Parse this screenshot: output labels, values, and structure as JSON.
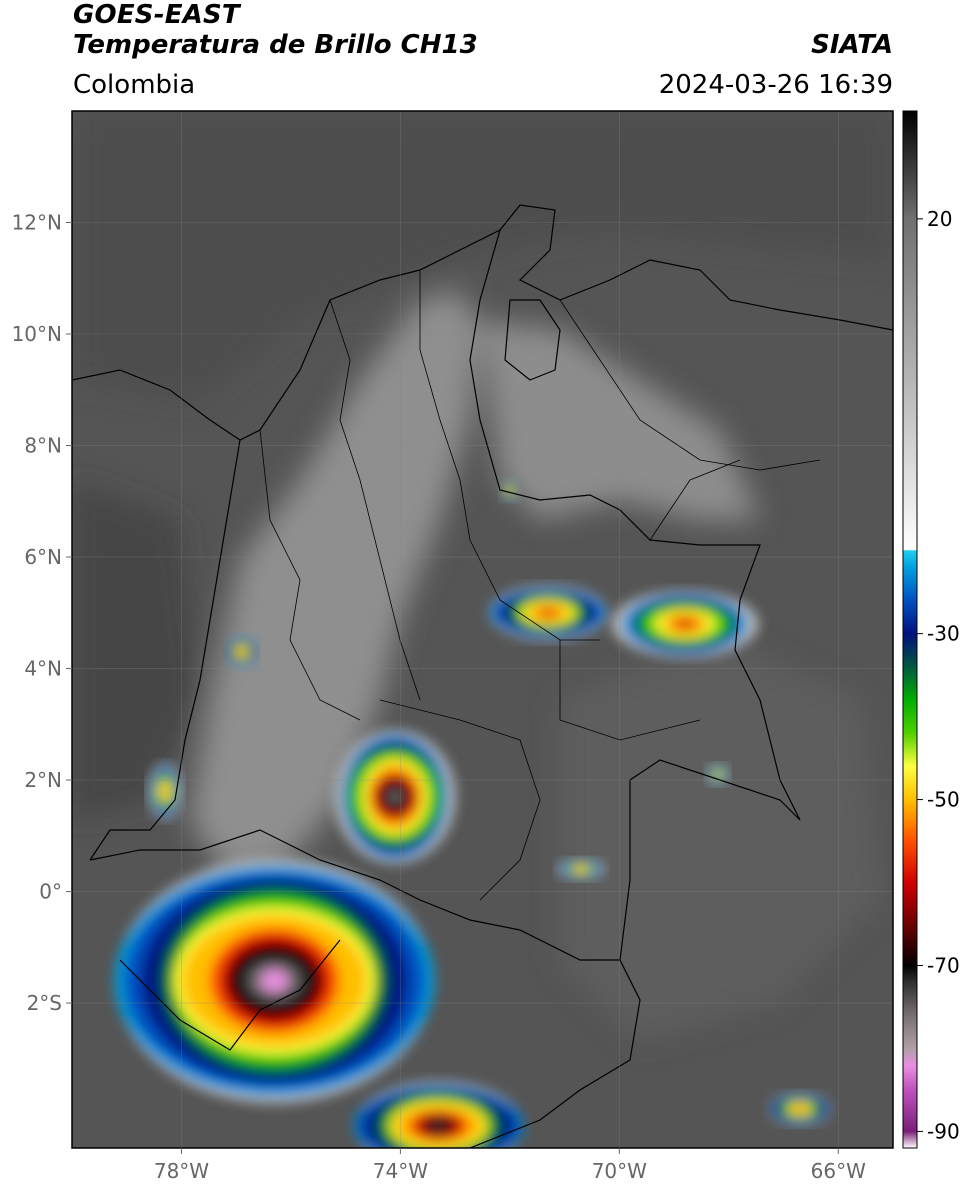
{
  "header": {
    "satellite": "GOES-EAST",
    "product": "Temperatura de Brillo CH13",
    "region": "Colombia",
    "agency": "SIATA",
    "datetime": "2024-03-26 16:39"
  },
  "map": {
    "lat_range": [
      -4.6,
      14.0
    ],
    "lon_range": [
      -80.0,
      -65.0
    ],
    "lat_ticks": [
      {
        "value": 12,
        "label": "12°N"
      },
      {
        "value": 10,
        "label": "10°N"
      },
      {
        "value": 8,
        "label": "8°N"
      },
      {
        "value": 6,
        "label": "6°N"
      },
      {
        "value": 4,
        "label": "4°N"
      },
      {
        "value": 2,
        "label": "2°N"
      },
      {
        "value": 0,
        "label": "0°"
      },
      {
        "value": -2,
        "label": "2°S"
      }
    ],
    "lon_ticks": [
      {
        "value": -78,
        "label": "78°W"
      },
      {
        "value": -74,
        "label": "74°W"
      },
      {
        "value": -70,
        "label": "70°W"
      },
      {
        "value": -66,
        "label": "66°W"
      }
    ],
    "background_color": "#555555",
    "border_color": "#000000"
  },
  "colorbar": {
    "range": [
      -92,
      33
    ],
    "ticks": [
      {
        "value": 20,
        "label": "20"
      },
      {
        "value": -30,
        "label": "-30"
      },
      {
        "value": -50,
        "label": "-50"
      },
      {
        "value": -70,
        "label": "-70"
      },
      {
        "value": -90,
        "label": "-90"
      }
    ],
    "stops": [
      {
        "t": -92,
        "color": "#ffffff"
      },
      {
        "t": -90,
        "color": "#7a1f7a"
      },
      {
        "t": -85,
        "color": "#c050c0"
      },
      {
        "t": -82,
        "color": "#e890e0"
      },
      {
        "t": -80,
        "color": "#b0a0a8"
      },
      {
        "t": -76,
        "color": "#787070"
      },
      {
        "t": -72,
        "color": "#303030"
      },
      {
        "t": -70,
        "color": "#000000"
      },
      {
        "t": -66,
        "color": "#5a0000"
      },
      {
        "t": -60,
        "color": "#d00000"
      },
      {
        "t": -55,
        "color": "#ff5000"
      },
      {
        "t": -50,
        "color": "#ffc000"
      },
      {
        "t": -46,
        "color": "#ffff40"
      },
      {
        "t": -42,
        "color": "#50d000"
      },
      {
        "t": -38,
        "color": "#00b000"
      },
      {
        "t": -34,
        "color": "#005840"
      },
      {
        "t": -30,
        "color": "#001080"
      },
      {
        "t": -26,
        "color": "#0050c0"
      },
      {
        "t": -22,
        "color": "#00a0e0"
      },
      {
        "t": -20,
        "color": "#20d0f0"
      },
      {
        "t": -19.9,
        "color": "#ffffff"
      },
      {
        "t": 0,
        "color": "#b8b8b8"
      },
      {
        "t": 20,
        "color": "#707070"
      },
      {
        "t": 33,
        "color": "#000000"
      }
    ]
  },
  "storms": [
    {
      "lon": -76.3,
      "lat": -1.6,
      "rx": 2.9,
      "ry": 2.2,
      "core": -82
    },
    {
      "lon": -74.1,
      "lat": 1.7,
      "rx": 1.1,
      "ry": 1.2,
      "core": -80
    },
    {
      "lon": -71.3,
      "lat": 5.0,
      "rx": 1.1,
      "ry": 0.5,
      "core": -62
    },
    {
      "lon": -68.8,
      "lat": 4.8,
      "rx": 1.3,
      "ry": 0.6,
      "core": -64
    },
    {
      "lon": -73.3,
      "lat": -4.2,
      "rx": 1.6,
      "ry": 0.8,
      "core": -74
    },
    {
      "lon": -78.3,
      "lat": 1.8,
      "rx": 0.3,
      "ry": 0.5,
      "core": -60
    },
    {
      "lon": -76.9,
      "lat": 4.3,
      "rx": 0.3,
      "ry": 0.3,
      "core": -60
    },
    {
      "lon": -68.2,
      "lat": 2.1,
      "rx": 0.2,
      "ry": 0.2,
      "core": -55
    },
    {
      "lon": -66.7,
      "lat": -3.9,
      "rx": 0.6,
      "ry": 0.3,
      "core": -58
    },
    {
      "lon": -70.7,
      "lat": 0.4,
      "rx": 0.4,
      "ry": 0.2,
      "core": -58
    },
    {
      "lon": -72.0,
      "lat": 7.2,
      "rx": 0.2,
      "ry": 0.2,
      "core": -60
    }
  ]
}
